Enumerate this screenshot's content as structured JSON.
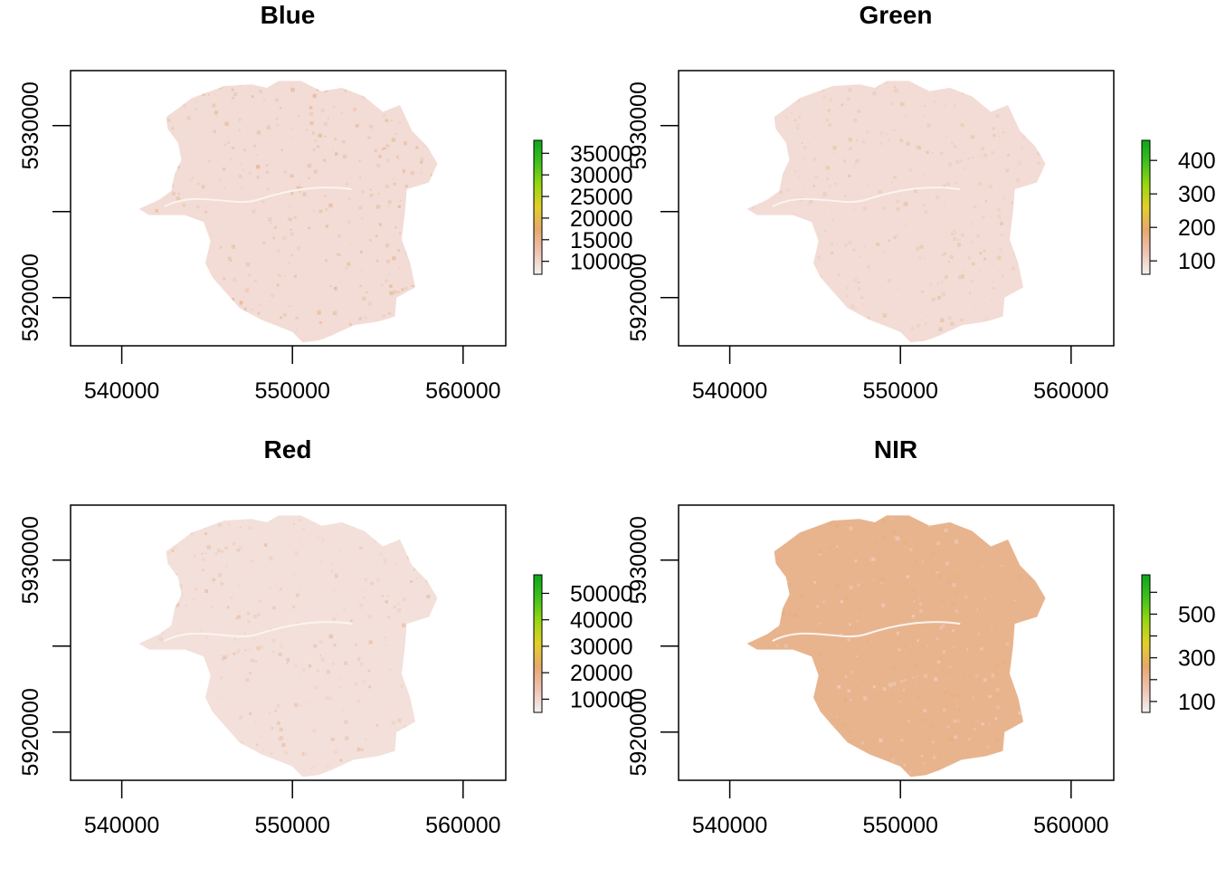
{
  "chart_data": [
    {
      "type": "heatmap",
      "title": "Blue",
      "xlim": [
        537000,
        562500
      ],
      "ylim": [
        5917200,
        5933200
      ],
      "x_ticks": [
        540000,
        550000,
        560000
      ],
      "x_tick_labels": [
        "540000",
        "550000",
        "560000"
      ],
      "y_ticks": [
        5920000,
        5925000,
        5930000
      ],
      "y_tick_labels": [
        "5920000",
        "",
        "5930000"
      ],
      "legend": {
        "placement": "right",
        "range": [
          7000,
          38000
        ],
        "ticks": [
          10000,
          15000,
          20000,
          25000,
          30000,
          35000
        ],
        "tick_labels": [
          "10000",
          "15000",
          "20000",
          "25000",
          "30000",
          "35000"
        ]
      },
      "colors": {
        "fill": "#f2dcd5",
        "highlight": "#e8b896",
        "urban": "#e8c4b4"
      }
    },
    {
      "type": "heatmap",
      "title": "Green",
      "xlim": [
        537000,
        562500
      ],
      "ylim": [
        5917200,
        5933200
      ],
      "x_ticks": [
        540000,
        550000,
        560000
      ],
      "x_tick_labels": [
        "540000",
        "550000",
        "560000"
      ],
      "y_ticks": [
        5920000,
        5925000,
        5930000
      ],
      "y_tick_labels": [
        "5920000",
        "",
        "5930000"
      ],
      "legend": {
        "placement": "right",
        "range": [
          6000,
          46000
        ],
        "ticks": [
          10000,
          20000,
          30000,
          40000
        ],
        "tick_labels": [
          "100",
          "200",
          "300",
          "400"
        ]
      },
      "colors": {
        "fill": "#f2dcd5",
        "highlight": "#e8c4a4",
        "urban": "#ebcdc0"
      }
    },
    {
      "type": "heatmap",
      "title": "Red",
      "xlim": [
        537000,
        562500
      ],
      "ylim": [
        5917200,
        5933200
      ],
      "x_ticks": [
        540000,
        550000,
        560000
      ],
      "x_tick_labels": [
        "540000",
        "550000",
        "560000"
      ],
      "y_ticks": [
        5920000,
        5925000,
        5930000
      ],
      "y_tick_labels": [
        "5920000",
        "",
        "5930000"
      ],
      "legend": {
        "placement": "right",
        "range": [
          5000,
          57000
        ],
        "ticks": [
          10000,
          20000,
          30000,
          40000,
          50000
        ],
        "tick_labels": [
          "10000",
          "20000",
          "30000",
          "40000",
          "50000"
        ]
      },
      "colors": {
        "fill": "#f3e0da",
        "highlight": "#e8c0a8",
        "urban": "#eed2c6"
      }
    },
    {
      "type": "heatmap",
      "title": "NIR",
      "xlim": [
        537000,
        562500
      ],
      "ylim": [
        5917200,
        5933200
      ],
      "x_ticks": [
        540000,
        550000,
        560000
      ],
      "x_tick_labels": [
        "540000",
        "550000",
        "560000"
      ],
      "y_ticks": [
        5920000,
        5925000,
        5930000
      ],
      "y_tick_labels": [
        "5920000",
        "",
        "5930000"
      ],
      "legend": {
        "placement": "right",
        "range": [
          5000,
          68000
        ],
        "ticks": [
          10000,
          20000,
          30000,
          40000,
          50000,
          60000
        ],
        "tick_labels": [
          "100",
          "",
          "300",
          "",
          "500",
          ""
        ]
      },
      "colors": {
        "fill": "#e8b48e",
        "highlight": "#e9ae7c",
        "urban": "#efcbbd"
      }
    }
  ],
  "colorbar_gradient": [
    "#f2f2f2",
    "#efc2b3",
    "#e6a96b",
    "#e3cf2a",
    "#99d70f",
    "#3ec21c",
    "#0ea51a"
  ]
}
